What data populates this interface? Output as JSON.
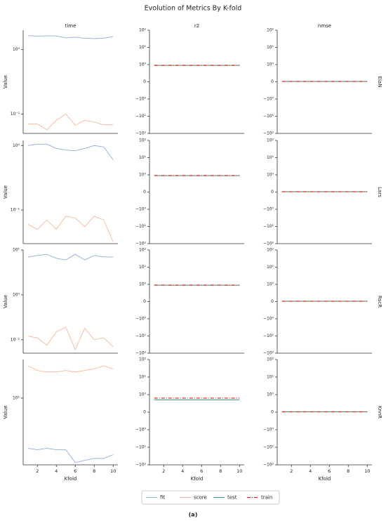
{
  "figure": {
    "title": "Evolution of Metrics By K-fold",
    "caption": "(a)"
  },
  "chart_data": [
    {
      "type": "line",
      "title": "time",
      "ylabel": "Value",
      "yscale": "log",
      "x": [
        1,
        2,
        3,
        4,
        5,
        6,
        7,
        8,
        9,
        10
      ],
      "xlim": [
        0.5,
        10.5
      ],
      "ylim": [
        0.05,
        2
      ],
      "yticks": [
        {
          "value": 1,
          "label": "10⁰"
        },
        {
          "value": 0.1,
          "label": "10⁻¹"
        }
      ],
      "series": [
        {
          "name": "fit",
          "color": "#8fb0d8",
          "values": [
            1.65,
            1.62,
            1.64,
            1.63,
            1.52,
            1.56,
            1.5,
            1.48,
            1.5,
            1.6
          ]
        },
        {
          "name": "score",
          "color": "#f4b89a",
          "values": [
            0.07,
            0.07,
            0.057,
            0.08,
            0.1,
            0.067,
            0.08,
            0.075,
            0.068,
            0.068
          ]
        }
      ]
    },
    {
      "type": "line",
      "title": "r2",
      "yscale": "symlog",
      "x": [
        1,
        2,
        3,
        4,
        5,
        6,
        7,
        8,
        9,
        10
      ],
      "xlim": [
        0.5,
        10.5
      ],
      "ylim": [
        -100,
        100
      ],
      "yticks": [
        {
          "value": 100,
          "label": "10²"
        },
        {
          "value": 10,
          "label": "10¹"
        },
        {
          "value": 1,
          "label": "10⁰"
        },
        0,
        {
          "value": -1,
          "label": "−10⁰"
        },
        {
          "value": -10,
          "label": "−10¹"
        },
        {
          "value": -100,
          "label": "−10²"
        }
      ],
      "series": [
        {
          "name": "test",
          "color": "#3a9e6e",
          "values": [
            0.95,
            0.95,
            0.95,
            0.95,
            0.95,
            0.95,
            0.95,
            0.95,
            0.95,
            0.95
          ]
        },
        {
          "name": "train",
          "color": "#d62728",
          "linestyle": "dashdot",
          "values": [
            0.96,
            0.96,
            0.96,
            0.96,
            0.96,
            0.96,
            0.96,
            0.96,
            0.96,
            0.96
          ]
        }
      ]
    },
    {
      "type": "line",
      "title": "nmse",
      "row_label": "ElaN",
      "yscale": "symlog",
      "x": [
        1,
        2,
        3,
        4,
        5,
        6,
        7,
        8,
        9,
        10
      ],
      "xlim": [
        0.5,
        10.5
      ],
      "ylim": [
        -100,
        100
      ],
      "yticks": [
        {
          "value": 100,
          "label": "10²"
        },
        {
          "value": 10,
          "label": "10¹"
        },
        {
          "value": 1,
          "label": "10⁰"
        },
        0,
        {
          "value": -1,
          "label": "−10⁰"
        },
        {
          "value": -10,
          "label": "−10¹"
        },
        {
          "value": -100,
          "label": "−10²"
        }
      ],
      "series": [
        {
          "name": "test",
          "color": "#3a9e6e",
          "values": [
            0.02,
            0.02,
            0.02,
            0.02,
            0.02,
            0.02,
            0.02,
            0.02,
            0.02,
            0.02
          ]
        },
        {
          "name": "train",
          "color": "#d62728",
          "linestyle": "dashdot",
          "values": [
            0.02,
            0.02,
            0.02,
            0.02,
            0.02,
            0.02,
            0.02,
            0.02,
            0.02,
            0.02
          ]
        }
      ]
    },
    {
      "type": "line",
      "ylabel": "Value",
      "yscale": "log",
      "x": [
        1,
        2,
        3,
        4,
        5,
        6,
        7,
        8,
        9,
        10
      ],
      "xlim": [
        0.5,
        10.5
      ],
      "ylim": [
        0.03,
        1.2
      ],
      "yticks": [
        {
          "value": 1,
          "label": "10⁰"
        },
        {
          "value": 0.1,
          "label": "10⁻¹"
        }
      ],
      "series": [
        {
          "name": "fit",
          "color": "#8fb0d8",
          "values": [
            1.0,
            1.05,
            1.05,
            0.9,
            0.85,
            0.83,
            0.9,
            1.0,
            0.95,
            0.6
          ]
        },
        {
          "name": "score",
          "color": "#f4b89a",
          "values": [
            0.06,
            0.05,
            0.07,
            0.05,
            0.08,
            0.075,
            0.055,
            0.08,
            0.07,
            0.032
          ]
        }
      ]
    },
    {
      "type": "line",
      "yscale": "symlog",
      "x": [
        1,
        2,
        3,
        4,
        5,
        6,
        7,
        8,
        9,
        10
      ],
      "xlim": [
        0.5,
        10.5
      ],
      "ylim": [
        -100,
        100
      ],
      "yticks": [
        {
          "value": 100,
          "label": "10²"
        },
        {
          "value": 10,
          "label": "10¹"
        },
        {
          "value": 1,
          "label": "10⁰"
        },
        0,
        {
          "value": -1,
          "label": "−10⁰"
        },
        {
          "value": -10,
          "label": "−10¹"
        },
        {
          "value": -100,
          "label": "−10²"
        }
      ],
      "series": [
        {
          "name": "test",
          "color": "#3a9e6e",
          "values": [
            0.95,
            0.95,
            0.95,
            0.95,
            0.95,
            0.95,
            0.95,
            0.95,
            0.95,
            0.95
          ]
        },
        {
          "name": "train",
          "color": "#d62728",
          "linestyle": "dashdot",
          "values": [
            0.96,
            0.96,
            0.96,
            0.96,
            0.96,
            0.96,
            0.96,
            0.96,
            0.96,
            0.96
          ]
        }
      ]
    },
    {
      "type": "line",
      "row_label": "Lars",
      "yscale": "symlog",
      "x": [
        1,
        2,
        3,
        4,
        5,
        6,
        7,
        8,
        9,
        10
      ],
      "xlim": [
        0.5,
        10.5
      ],
      "ylim": [
        -100,
        100
      ],
      "yticks": [
        {
          "value": 100,
          "label": "10²"
        },
        {
          "value": 10,
          "label": "10¹"
        },
        {
          "value": 1,
          "label": "10⁰"
        },
        0,
        {
          "value": -1,
          "label": "−10⁰"
        },
        {
          "value": -10,
          "label": "−10¹"
        },
        {
          "value": -100,
          "label": "−10²"
        }
      ],
      "series": [
        {
          "name": "test",
          "color": "#3a9e6e",
          "values": [
            0.02,
            0.02,
            0.02,
            0.02,
            0.02,
            0.02,
            0.02,
            0.02,
            0.02,
            0.02
          ]
        },
        {
          "name": "train",
          "color": "#d62728",
          "linestyle": "dashdot",
          "values": [
            0.02,
            0.02,
            0.02,
            0.02,
            0.02,
            0.02,
            0.02,
            0.02,
            0.02,
            0.02
          ]
        }
      ]
    },
    {
      "type": "line",
      "ylabel": "Value",
      "yscale": "log",
      "x": [
        1,
        2,
        3,
        4,
        5,
        6,
        7,
        8,
        9,
        10
      ],
      "xlim": [
        0.5,
        10.5
      ],
      "ylim": [
        0.05,
        10
      ],
      "yticks": [
        {
          "value": 10,
          "label": "10¹"
        },
        {
          "value": 1,
          "label": "10⁰"
        },
        {
          "value": 0.1,
          "label": "10⁻¹"
        }
      ],
      "series": [
        {
          "name": "fit",
          "color": "#8fb0d8",
          "values": [
            7,
            7.5,
            8,
            6.5,
            6,
            8,
            6,
            7.5,
            7,
            7
          ]
        },
        {
          "name": "score",
          "color": "#f4b89a",
          "values": [
            0.12,
            0.11,
            0.075,
            0.15,
            0.19,
            0.06,
            0.18,
            0.1,
            0.11,
            0.07
          ]
        }
      ]
    },
    {
      "type": "line",
      "yscale": "symlog",
      "x": [
        1,
        2,
        3,
        4,
        5,
        6,
        7,
        8,
        9,
        10
      ],
      "xlim": [
        0.5,
        10.5
      ],
      "ylim": [
        -100,
        100
      ],
      "yticks": [
        {
          "value": 100,
          "label": "10²"
        },
        {
          "value": 10,
          "label": "10¹"
        },
        {
          "value": 1,
          "label": "10⁰"
        },
        0,
        {
          "value": -1,
          "label": "−10⁰"
        },
        {
          "value": -10,
          "label": "−10¹"
        },
        {
          "value": -100,
          "label": "−10²"
        }
      ],
      "series": [
        {
          "name": "test",
          "color": "#3a9e6e",
          "values": [
            0.95,
            0.95,
            0.95,
            0.95,
            0.95,
            0.95,
            0.95,
            0.95,
            0.95,
            0.95
          ]
        },
        {
          "name": "train",
          "color": "#d62728",
          "linestyle": "dashdot",
          "values": [
            0.96,
            0.96,
            0.96,
            0.96,
            0.96,
            0.96,
            0.96,
            0.96,
            0.96,
            0.96
          ]
        }
      ]
    },
    {
      "type": "line",
      "row_label": "RscR",
      "yscale": "symlog",
      "x": [
        1,
        2,
        3,
        4,
        5,
        6,
        7,
        8,
        9,
        10
      ],
      "xlim": [
        0.5,
        10.5
      ],
      "ylim": [
        -100,
        100
      ],
      "yticks": [
        {
          "value": 100,
          "label": "10²"
        },
        {
          "value": 10,
          "label": "10¹"
        },
        {
          "value": 1,
          "label": "10⁰"
        },
        0,
        {
          "value": -1,
          "label": "−10⁰"
        },
        {
          "value": -10,
          "label": "−10¹"
        },
        {
          "value": -100,
          "label": "−10²"
        }
      ],
      "series": [
        {
          "name": "test",
          "color": "#3a9e6e",
          "values": [
            0.02,
            0.02,
            0.02,
            0.02,
            0.02,
            0.02,
            0.02,
            0.02,
            0.02,
            0.02
          ]
        },
        {
          "name": "train",
          "color": "#d62728",
          "linestyle": "dashdot",
          "values": [
            0.02,
            0.02,
            0.02,
            0.02,
            0.02,
            0.02,
            0.02,
            0.02,
            0.02,
            0.02
          ]
        }
      ]
    },
    {
      "type": "line",
      "ylabel": "Value",
      "xlabel": "Kfold",
      "yscale": "log",
      "x": [
        1,
        2,
        3,
        4,
        5,
        6,
        7,
        8,
        9,
        10
      ],
      "xlim": [
        0.5,
        10.5
      ],
      "xticks": [
        2,
        4,
        6,
        8,
        10
      ],
      "ylim": [
        1.5,
        30
      ],
      "yticks": [
        {
          "value": 10,
          "label": "10¹"
        }
      ],
      "series": [
        {
          "name": "fit",
          "color": "#8fb0d8",
          "values": [
            2.4,
            2.3,
            2.4,
            2.3,
            2.3,
            1.6,
            1.7,
            1.8,
            1.8,
            2.0
          ]
        },
        {
          "name": "score",
          "color": "#f4b89a",
          "values": [
            25,
            22,
            21,
            21,
            22,
            21,
            22,
            23,
            25,
            23
          ]
        }
      ]
    },
    {
      "type": "line",
      "xlabel": "Kfold",
      "yscale": "symlog",
      "x": [
        1,
        2,
        3,
        4,
        5,
        6,
        7,
        8,
        9,
        10
      ],
      "xlim": [
        0.5,
        10.5
      ],
      "xticks": [
        2,
        4,
        6,
        8,
        10
      ],
      "ylim": [
        -100,
        100
      ],
      "yticks": [
        {
          "value": 100,
          "label": "10²"
        },
        {
          "value": 10,
          "label": "10¹"
        },
        {
          "value": 1,
          "label": "10⁰"
        },
        0,
        {
          "value": -1,
          "label": "−10⁰"
        },
        {
          "value": -10,
          "label": "−10¹"
        },
        {
          "value": -100,
          "label": "−10²"
        }
      ],
      "series": [
        {
          "name": "test",
          "color": "#3a9e6e",
          "values": [
            0.7,
            0.7,
            0.7,
            0.7,
            0.7,
            0.7,
            0.7,
            0.7,
            0.7,
            0.7
          ]
        },
        {
          "name": "train",
          "color": "#d62728",
          "linestyle": "dashdot",
          "values": [
            0.8,
            0.8,
            0.8,
            0.8,
            0.8,
            0.8,
            0.8,
            0.8,
            0.8,
            0.8
          ]
        }
      ]
    },
    {
      "type": "line",
      "xlabel": "Kfold",
      "row_label": "KnnR",
      "yscale": "symlog",
      "x": [
        1,
        2,
        3,
        4,
        5,
        6,
        7,
        8,
        9,
        10
      ],
      "xlim": [
        0.5,
        10.5
      ],
      "xticks": [
        2,
        4,
        6,
        8,
        10
      ],
      "ylim": [
        -100,
        100
      ],
      "yticks": [
        {
          "value": 100,
          "label": "10²"
        },
        {
          "value": 10,
          "label": "10¹"
        },
        {
          "value": 1,
          "label": "10⁰"
        },
        0,
        {
          "value": -1,
          "label": "−10⁰"
        },
        {
          "value": -10,
          "label": "−10¹"
        },
        {
          "value": -100,
          "label": "−10²"
        }
      ],
      "series": [
        {
          "name": "test",
          "color": "#3a9e6e",
          "values": [
            0.02,
            0.02,
            0.02,
            0.02,
            0.02,
            0.02,
            0.02,
            0.02,
            0.02,
            0.02
          ]
        },
        {
          "name": "train",
          "color": "#d62728",
          "linestyle": "dashdot",
          "values": [
            0.02,
            0.02,
            0.02,
            0.02,
            0.02,
            0.02,
            0.02,
            0.02,
            0.02,
            0.02
          ]
        }
      ]
    }
  ]
}
